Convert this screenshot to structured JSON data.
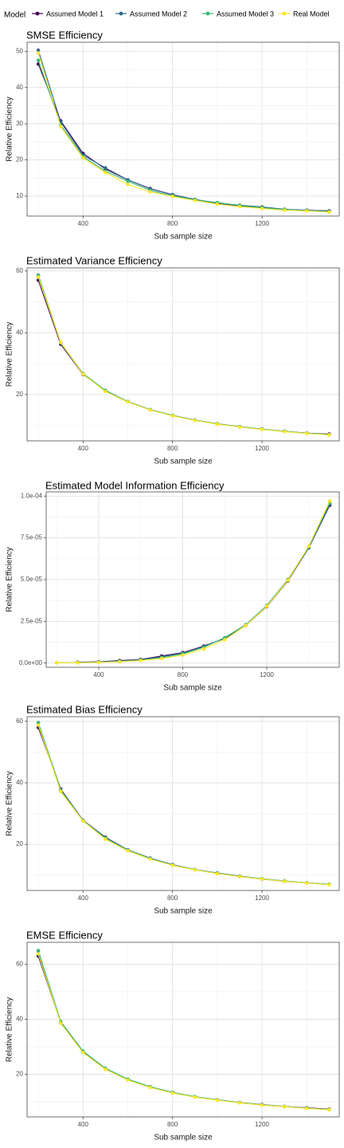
{
  "legend": {
    "title": "Model",
    "items": [
      {
        "label": "Assumed Model 1",
        "color": "#440154"
      },
      {
        "label": "Assumed Model 2",
        "color": "#31688e"
      },
      {
        "label": "Assumed Model 3",
        "color": "#35b779"
      },
      {
        "label": "Real Model",
        "color": "#fde725"
      }
    ]
  },
  "chart_data": [
    {
      "type": "line",
      "title": "SMSE Efficiency",
      "xlabel": "Sub sample size",
      "ylabel": "Relative Efficiency",
      "xlim": [
        150,
        1545
      ],
      "ylim": [
        4.5,
        52.5
      ],
      "xticks": [
        400,
        800,
        1200
      ],
      "xtick_labels": [
        "400",
        "800",
        "1200"
      ],
      "yticks": [
        10,
        20,
        30,
        40,
        50
      ],
      "ytick_labels": [
        "10",
        "20",
        "30",
        "40",
        "50"
      ],
      "grid": true,
      "x": [
        200,
        300,
        400,
        500,
        600,
        700,
        800,
        900,
        1000,
        1100,
        1200,
        1300,
        1400,
        1500
      ],
      "series": [
        {
          "name": "Assumed Model 1",
          "color": "#440154",
          "values": [
            46.5,
            30.8,
            21.8,
            17.5,
            14.5,
            12.1,
            10.4,
            9.0,
            8.0,
            7.2,
            6.8,
            6.3,
            6.1,
            5.9
          ]
        },
        {
          "name": "Assumed Model 2",
          "color": "#31688e",
          "values": [
            50.3,
            30.5,
            21.3,
            17.8,
            14.5,
            12.0,
            10.4,
            9.1,
            8.1,
            7.5,
            7.0,
            6.4,
            6.1,
            5.9
          ]
        },
        {
          "name": "Assumed Model 3",
          "color": "#35b779",
          "values": [
            47.5,
            29.6,
            20.9,
            16.9,
            14.1,
            11.6,
            10.1,
            9.0,
            8.2,
            7.4,
            6.8,
            6.3,
            6.0,
            5.7
          ]
        },
        {
          "name": "Real Model",
          "color": "#fde725",
          "values": [
            49.5,
            29.2,
            20.6,
            16.5,
            13.2,
            11.2,
            9.9,
            8.8,
            7.8,
            7.1,
            6.6,
            6.1,
            5.9,
            5.6
          ]
        }
      ]
    },
    {
      "type": "line",
      "title": "Estimated Variance Efficiency",
      "xlabel": "Sub sample size",
      "ylabel": "Relative Efficiency",
      "xlim": [
        150,
        1545
      ],
      "ylim": [
        5.0,
        61.0
      ],
      "xticks": [
        400,
        800,
        1200
      ],
      "xtick_labels": [
        "400",
        "800",
        "1200"
      ],
      "yticks": [
        20,
        40,
        60
      ],
      "ytick_labels": [
        "20",
        "40",
        "60"
      ],
      "grid": true,
      "x": [
        200,
        300,
        400,
        500,
        600,
        700,
        800,
        900,
        1000,
        1100,
        1200,
        1300,
        1400,
        1500
      ],
      "series": [
        {
          "name": "Assumed Model 1",
          "color": "#440154",
          "values": [
            57.0,
            36.3,
            26.5,
            21.2,
            17.7,
            15.1,
            13.2,
            11.7,
            10.5,
            9.6,
            8.8,
            8.1,
            7.5,
            7.2
          ]
        },
        {
          "name": "Assumed Model 2",
          "color": "#31688e",
          "values": [
            58.5,
            36.6,
            26.7,
            21.3,
            17.7,
            15.1,
            13.2,
            11.7,
            10.5,
            9.6,
            8.8,
            8.1,
            7.5,
            7.1
          ]
        },
        {
          "name": "Assumed Model 3",
          "color": "#35b779",
          "values": [
            58.7,
            36.8,
            26.8,
            21.3,
            17.7,
            15.1,
            13.2,
            11.7,
            10.5,
            9.6,
            8.8,
            8.1,
            7.5,
            7.0
          ]
        },
        {
          "name": "Real Model",
          "color": "#fde725",
          "values": [
            58.0,
            36.9,
            26.6,
            21.0,
            17.6,
            15.0,
            13.1,
            11.6,
            10.4,
            9.5,
            8.7,
            8.0,
            7.4,
            6.9
          ]
        }
      ]
    },
    {
      "type": "line",
      "title": "Estimated Model Information Efficiency",
      "xlabel": "Sub sample size",
      "ylabel": "Relative Efficiency",
      "xlim": [
        150,
        1545
      ],
      "ylim": [
        -2.5e-06,
        0.0001025
      ],
      "xticks": [
        400,
        800,
        1200
      ],
      "xtick_labels": [
        "400",
        "800",
        "1200"
      ],
      "yticks": [
        0,
        2.5e-05,
        5e-05,
        7.5e-05,
        0.0001
      ],
      "ytick_labels": [
        "0.0e+00",
        "2.5e-05",
        "5.0e-05",
        "7.5e-05",
        "1.0e-04"
      ],
      "grid": true,
      "x": [
        200,
        300,
        400,
        500,
        600,
        700,
        800,
        900,
        1000,
        1100,
        1200,
        1300,
        1400,
        1500
      ],
      "series": [
        {
          "name": "Assumed Model 1",
          "color": "#440154",
          "values": [
            null,
            5e-07,
            8e-07,
            1.5e-06,
            2.2e-06,
            4.3e-06,
            6.3e-06,
            1.02e-05,
            1.48e-05,
            2.25e-05,
            3.38e-05,
            4.92e-05,
            6.9e-05,
            9.45e-05
          ]
        },
        {
          "name": "Assumed Model 2",
          "color": "#31688e",
          "values": [
            null,
            3e-07,
            7e-07,
            1.3e-06,
            2e-06,
            3.8e-06,
            6e-06,
            9.8e-06,
            1.5e-05,
            2.28e-05,
            3.4e-05,
            4.95e-05,
            6.9e-05,
            9.5e-05
          ]
        },
        {
          "name": "Assumed Model 3",
          "color": "#35b779",
          "values": [
            2e-07,
            3e-07,
            6e-07,
            1e-06,
            1.8e-06,
            3.2e-06,
            5.5e-06,
            9.5e-06,
            1.52e-05,
            2.3e-05,
            3.45e-05,
            5e-05,
            6.95e-05,
            9.6e-05
          ]
        },
        {
          "name": "Real Model",
          "color": "#fde725",
          "values": [
            2e-07,
            2e-07,
            4e-07,
            8e-07,
            1.5e-06,
            2.8e-06,
            4.8e-06,
            8.5e-06,
            1.4e-05,
            2.25e-05,
            3.4e-05,
            4.95e-05,
            7e-05,
            9.7e-05
          ]
        }
      ]
    },
    {
      "type": "line",
      "title": "Estimated Bias Efficiency",
      "xlabel": "Sub sample size",
      "ylabel": "Relative Efficiency",
      "xlim": [
        150,
        1545
      ],
      "ylim": [
        5.0,
        61.5
      ],
      "xticks": [
        400,
        800,
        1200
      ],
      "xtick_labels": [
        "400",
        "800",
        "1200"
      ],
      "yticks": [
        20,
        40,
        60
      ],
      "ytick_labels": [
        "20",
        "40",
        "60"
      ],
      "grid": true,
      "x": [
        200,
        300,
        400,
        500,
        600,
        700,
        800,
        900,
        1000,
        1100,
        1200,
        1300,
        1400,
        1500
      ],
      "series": [
        {
          "name": "Assumed Model 1",
          "color": "#440154",
          "values": [
            58.0,
            38.0,
            27.8,
            22.3,
            18.2,
            15.5,
            13.4,
            11.8,
            10.6,
            9.6,
            8.7,
            8.0,
            7.5,
            7.0
          ]
        },
        {
          "name": "Assumed Model 2",
          "color": "#31688e",
          "values": [
            59.4,
            37.8,
            27.8,
            22.2,
            18.2,
            15.5,
            13.4,
            11.8,
            10.7,
            9.7,
            8.8,
            8.1,
            7.5,
            7.0
          ]
        },
        {
          "name": "Assumed Model 3",
          "color": "#35b779",
          "values": [
            59.6,
            37.6,
            27.7,
            22.0,
            18.1,
            15.4,
            13.3,
            11.8,
            10.6,
            9.6,
            8.8,
            8.1,
            7.5,
            7.0
          ]
        },
        {
          "name": "Real Model",
          "color": "#fde725",
          "values": [
            58.8,
            37.2,
            27.6,
            21.7,
            17.9,
            15.2,
            13.2,
            11.7,
            10.5,
            9.5,
            8.7,
            8.0,
            7.4,
            6.9
          ]
        }
      ]
    },
    {
      "type": "line",
      "title": "EMSE Efficiency",
      "xlabel": "Sub sample size",
      "ylabel": "Relative Efficiency",
      "xlim": [
        150,
        1545
      ],
      "ylim": [
        4.5,
        68.0
      ],
      "xticks": [
        400,
        800,
        1200
      ],
      "xtick_labels": [
        "400",
        "800",
        "1200"
      ],
      "yticks": [
        20,
        40,
        60
      ],
      "ytick_labels": [
        "20",
        "40",
        "60"
      ],
      "grid": true,
      "x": [
        200,
        300,
        400,
        500,
        600,
        700,
        800,
        900,
        1000,
        1100,
        1200,
        1300,
        1400,
        1500
      ],
      "series": [
        {
          "name": "Assumed Model 1",
          "color": "#440154",
          "values": [
            63.0,
            38.8,
            28.0,
            22.1,
            18.1,
            15.4,
            13.3,
            11.8,
            10.7,
            9.7,
            9.0,
            8.3,
            7.8,
            7.3
          ]
        },
        {
          "name": "Assumed Model 2",
          "color": "#31688e",
          "values": [
            64.8,
            39.0,
            28.3,
            22.1,
            18.2,
            15.4,
            13.4,
            11.8,
            10.7,
            9.7,
            8.9,
            8.3,
            7.7,
            7.2
          ]
        },
        {
          "name": "Assumed Model 3",
          "color": "#35b779",
          "values": [
            65.0,
            39.2,
            28.4,
            22.2,
            18.2,
            15.5,
            13.4,
            11.9,
            10.7,
            9.7,
            8.9,
            8.3,
            7.7,
            7.2
          ]
        },
        {
          "name": "Real Model",
          "color": "#fde725",
          "values": [
            63.8,
            38.6,
            27.9,
            21.8,
            17.9,
            15.2,
            13.2,
            11.7,
            10.6,
            9.6,
            8.8,
            8.2,
            7.6,
            7.1
          ]
        }
      ]
    }
  ]
}
